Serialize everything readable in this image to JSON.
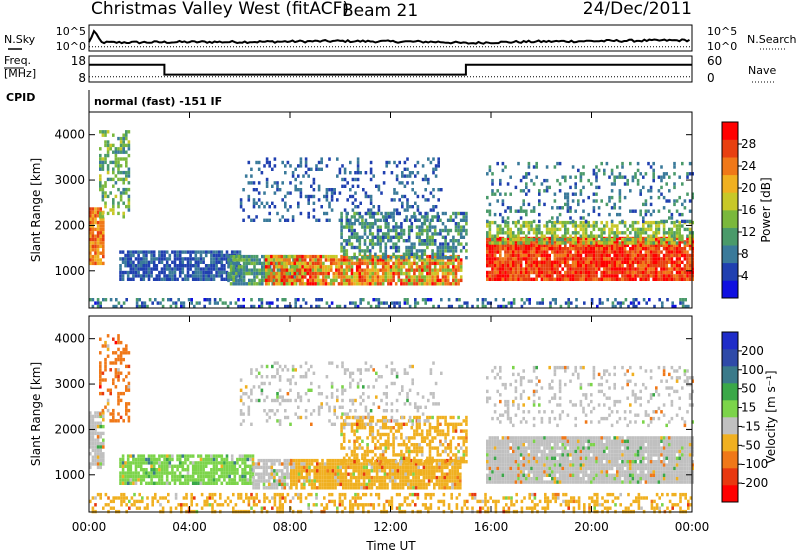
{
  "header": {
    "title": "Christmas Valley West (fitACF)",
    "beam": "Beam 21",
    "date": "24/Dec/2011"
  },
  "panels": {
    "noise_left_label": "N.Sky",
    "noise_right_label": "N.Search",
    "freq_left_label_1": "Freq.",
    "freq_left_label_2": "[MHz]",
    "freq_right_label": "Nave",
    "cpid_label": "CPID",
    "cpid_value": "normal (fast) -151 IF"
  },
  "colorbars": {
    "power": {
      "label": "Power [dB]",
      "ticks": [
        "4",
        "8",
        "12",
        "16",
        "20",
        "24",
        "28"
      ],
      "colors": [
        "#1010e0",
        "#2040b0",
        "#3a7a9a",
        "#4a9a6a",
        "#7ab83c",
        "#c8c828",
        "#f0b020",
        "#f07818",
        "#e84010",
        "#ff0000"
      ]
    },
    "velocity": {
      "label": "Velocity [m s⁻¹]",
      "ticks": [
        "200",
        "100",
        "50",
        "15",
        "-15",
        "-50",
        "-100",
        "-200"
      ],
      "colors": [
        "#1f2cc8",
        "#2f4aa8",
        "#3a7a8a",
        "#3aa848",
        "#7cd44a",
        "#c0c0c0",
        "#f0b020",
        "#f07818",
        "#e83810",
        "#ff0000"
      ]
    }
  },
  "chart_data": [
    {
      "type": "line",
      "name": "noise",
      "y_left_ticks": [
        "10^5",
        "10^0"
      ],
      "y_right_ticks": [
        "10^5",
        "10^0"
      ],
      "series": [
        {
          "name": "N.Sky",
          "x": [
            0,
            0.2,
            0.5,
            2,
            4,
            6,
            8,
            10,
            12,
            14,
            15,
            16,
            18,
            20,
            22,
            24
          ],
          "y": [
            1.5,
            4,
            1.5,
            1.5,
            1.6,
            1.6,
            1.7,
            1.8,
            1.7,
            1.6,
            1.3,
            1.5,
            1.7,
            1.8,
            1.9,
            2.0
          ]
        },
        {
          "name": "N.Search",
          "x": [
            0,
            4,
            8,
            12,
            16,
            20,
            24
          ],
          "y": [
            0.5,
            0.5,
            0.5,
            0.5,
            0.5,
            0.5,
            0.5
          ]
        }
      ]
    },
    {
      "type": "line",
      "name": "frequency",
      "y_left_ticks": [
        "18",
        "8"
      ],
      "y_right_ticks": [
        "60",
        "0"
      ],
      "series": [
        {
          "name": "Freq",
          "x": [
            0,
            3,
            3,
            15,
            15,
            24
          ],
          "y": [
            16.5,
            16.5,
            11,
            11,
            16.5,
            16.5
          ]
        },
        {
          "name": "Nave",
          "x": [
            0,
            24
          ],
          "y": [
            9,
            9
          ]
        }
      ]
    },
    {
      "type": "heatmap",
      "name": "power",
      "ylabel": "Slant Range [km]",
      "yticks": [
        1000,
        2000,
        3000,
        4000
      ],
      "ylim": [
        180,
        4500
      ],
      "xlim": [
        0,
        24
      ],
      "scale": [
        0,
        30
      ],
      "regions": [
        {
          "t0": 0.0,
          "t1": 0.6,
          "r0": 1200,
          "r1": 2400,
          "v0": 18,
          "v1": 26,
          "d": 0.85
        },
        {
          "t0": 0.4,
          "t1": 1.6,
          "r0": 2200,
          "r1": 4100,
          "v0": 8,
          "v1": 16,
          "d": 0.45
        },
        {
          "t0": 1.2,
          "t1": 6.0,
          "r0": 800,
          "r1": 1450,
          "v0": 3,
          "v1": 8,
          "d": 0.8
        },
        {
          "t0": 5.5,
          "t1": 8.5,
          "r0": 750,
          "r1": 1350,
          "v0": 6,
          "v1": 14,
          "d": 0.85
        },
        {
          "t0": 7.0,
          "t1": 14.8,
          "r0": 750,
          "r1": 1350,
          "v0": 12,
          "v1": 28,
          "d": 0.9
        },
        {
          "t0": 10.0,
          "t1": 15.0,
          "r0": 1300,
          "r1": 2300,
          "v0": 5,
          "v1": 13,
          "d": 0.55
        },
        {
          "t0": 6.0,
          "t1": 14.0,
          "r0": 2100,
          "r1": 3500,
          "v0": 3,
          "v1": 9,
          "d": 0.22
        },
        {
          "t0": 15.8,
          "t1": 24.0,
          "r0": 850,
          "r1": 1750,
          "v0": 22,
          "v1": 30,
          "d": 0.95
        },
        {
          "t0": 15.8,
          "t1": 24.0,
          "r0": 1600,
          "r1": 2100,
          "v0": 10,
          "v1": 18,
          "d": 0.65
        },
        {
          "t0": 15.8,
          "t1": 24.0,
          "r0": 2100,
          "r1": 3400,
          "v0": 4,
          "v1": 12,
          "d": 0.22
        },
        {
          "t0": 0.0,
          "t1": 24.0,
          "r0": 200,
          "r1": 400,
          "v0": 2,
          "v1": 12,
          "d": 0.35
        }
      ]
    },
    {
      "type": "heatmap",
      "name": "velocity",
      "ylabel": "Slant Range [km]",
      "xlabel": "Time UT",
      "xticks": [
        "00:00",
        "04:00",
        "08:00",
        "12:00",
        "16:00",
        "20:00",
        "00:00"
      ],
      "yticks": [
        1000,
        2000,
        3000,
        4000
      ],
      "ylim": [
        180,
        4500
      ],
      "xlim": [
        0,
        24
      ],
      "regions": [
        {
          "t0": 0.0,
          "t1": 0.6,
          "r0": 1200,
          "r1": 2400,
          "c": 5,
          "d": 0.85
        },
        {
          "t0": 0.4,
          "t1": 1.6,
          "r0": 2200,
          "r1": 4100,
          "c": 7,
          "d": 0.35
        },
        {
          "t0": 1.2,
          "t1": 6.5,
          "r0": 800,
          "r1": 1450,
          "c": 4,
          "d": 0.8
        },
        {
          "t0": 6.5,
          "t1": 8.0,
          "r0": 750,
          "r1": 1350,
          "c": 5,
          "d": 0.75
        },
        {
          "t0": 8.0,
          "t1": 14.8,
          "r0": 750,
          "r1": 1350,
          "c": 6,
          "d": 0.9
        },
        {
          "t0": 10.0,
          "t1": 15.0,
          "r0": 1300,
          "r1": 2300,
          "c": 6,
          "d": 0.5
        },
        {
          "t0": 6.0,
          "t1": 14.0,
          "r0": 2100,
          "r1": 3500,
          "c": 5,
          "d": 0.18
        },
        {
          "t0": 15.8,
          "t1": 24.0,
          "r0": 850,
          "r1": 1850,
          "c": 5,
          "d": 0.95
        },
        {
          "t0": 15.8,
          "t1": 24.0,
          "r0": 2100,
          "r1": 3400,
          "c": 5,
          "d": 0.2
        },
        {
          "t0": 0.0,
          "t1": 24.0,
          "r0": 200,
          "r1": 600,
          "c": 6,
          "d": 0.4
        }
      ]
    }
  ]
}
